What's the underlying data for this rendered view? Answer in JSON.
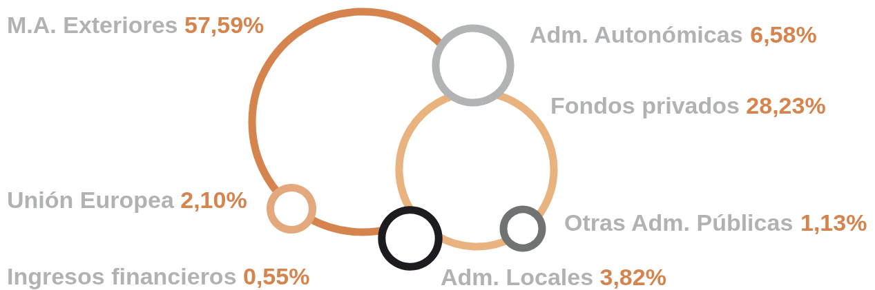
{
  "chart_data": {
    "type": "other",
    "categories": [
      "M.A. Exteriores",
      "Adm. Autonómicas",
      "Fondos privados",
      "Unión Europea",
      "Otras Adm. Públicas",
      "Ingresos financieros",
      "Adm. Locales"
    ],
    "values": [
      57.59,
      6.58,
      28.23,
      2.1,
      1.13,
      0.55,
      3.82
    ],
    "value_labels": [
      "57,59%",
      "6,58%",
      "28,23%",
      "2,10%",
      "1,13%",
      "0,55%",
      "3,82%"
    ],
    "colors": [
      "#d5844d",
      "#b2b3b5",
      "#e8b37e",
      "#e3a87c",
      "#717273",
      null,
      "#1d1b1f"
    ]
  }
}
